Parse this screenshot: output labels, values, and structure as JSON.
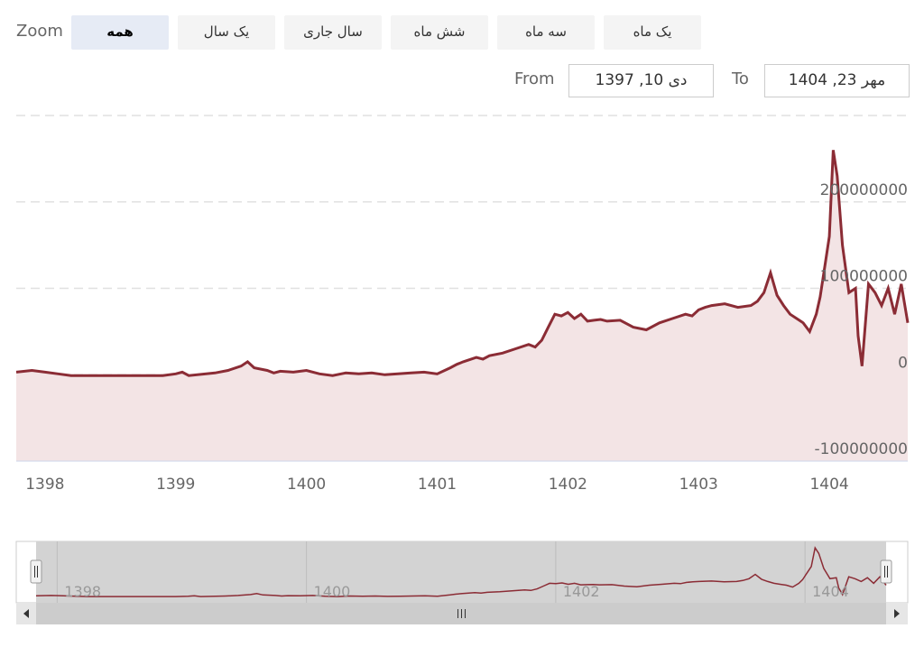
{
  "range_selector": {
    "zoom_label": "Zoom",
    "buttons": [
      {
        "label": "همه",
        "active": true
      },
      {
        "label": "یک سال",
        "active": false
      },
      {
        "label": "سال جاری",
        "active": false
      },
      {
        "label": "شش ماه",
        "active": false
      },
      {
        "label": "سه ماه",
        "active": false
      },
      {
        "label": "یک ماه",
        "active": false
      }
    ],
    "from_label": "From",
    "from_value": "دی 10, 1397",
    "to_label": "To",
    "to_value": "مهر 23, 1404"
  },
  "colors": {
    "line": "#8b2c35",
    "area": "#f3e4e5",
    "grid": "#e0e0e0",
    "navigator_mask": "#d3d3d3",
    "accent_button": "#e6ebf5"
  },
  "icons": {
    "scroll_left": "left-arrow-icon",
    "scroll_right": "right-arrow-icon",
    "scroll_grip": "grip-icon",
    "handle": "handle-grip-icon"
  },
  "chart_data": {
    "type": "area",
    "title": "",
    "xlabel": "",
    "ylabel": "",
    "xlim": [
      1397.78,
      1404.6
    ],
    "ylim": [
      -100000000,
      300000000
    ],
    "y_ticks": [
      -100000000,
      0,
      100000000,
      200000000
    ],
    "y_tick_labels": [
      "-100000000",
      "0",
      "100000000",
      "200000000"
    ],
    "x_ticks": [
      1398,
      1399,
      1400,
      1401,
      1402,
      1403,
      1404
    ],
    "x_tick_labels": [
      "1398",
      "1399",
      "1400",
      "1401",
      "1402",
      "1403",
      "1404"
    ],
    "navigator_labels": [
      "1398",
      "1400",
      "1402",
      "1404"
    ],
    "grid": "horizontal dashed",
    "legend": "none",
    "series": [
      {
        "x": [
          1397.78,
          1397.9,
          1398.0,
          1398.1,
          1398.2,
          1398.35,
          1398.5,
          1398.7,
          1398.9,
          1399.0,
          1399.05,
          1399.1,
          1399.3,
          1399.4,
          1399.5,
          1399.55,
          1399.6,
          1399.7,
          1399.75,
          1399.8,
          1399.9,
          1400.0,
          1400.1,
          1400.2,
          1400.3,
          1400.4,
          1400.5,
          1400.6,
          1400.7,
          1400.8,
          1400.9,
          1401.0,
          1401.1,
          1401.15,
          1401.2,
          1401.3,
          1401.35,
          1401.4,
          1401.5,
          1401.6,
          1401.7,
          1401.75,
          1401.8,
          1401.85,
          1401.9,
          1401.95,
          1402.0,
          1402.05,
          1402.1,
          1402.15,
          1402.2,
          1402.25,
          1402.3,
          1402.4,
          1402.5,
          1402.6,
          1402.7,
          1402.8,
          1402.9,
          1402.95,
          1403.0,
          1403.05,
          1403.1,
          1403.2,
          1403.3,
          1403.4,
          1403.45,
          1403.5,
          1403.55,
          1403.6,
          1403.65,
          1403.7,
          1403.75,
          1403.8,
          1403.85,
          1403.9,
          1403.93,
          1403.96,
          1404.0,
          1404.03,
          1404.06,
          1404.1,
          1404.15,
          1404.2,
          1404.22,
          1404.25,
          1404.3,
          1404.35,
          1404.4,
          1404.45,
          1404.5,
          1404.55,
          1404.6
        ],
        "y": [
          3000000,
          5000000,
          3000000,
          1000000,
          -1000000,
          -1000000,
          -1000000,
          -1000000,
          -1000000,
          1000000,
          3000000,
          -1000000,
          2000000,
          5000000,
          10000000,
          15000000,
          8000000,
          5000000,
          2000000,
          4000000,
          3000000,
          5000000,
          1000000,
          -1000000,
          2000000,
          1000000,
          2000000,
          0,
          1000000,
          2000000,
          3000000,
          1000000,
          8000000,
          12000000,
          15000000,
          20000000,
          18000000,
          22000000,
          25000000,
          30000000,
          35000000,
          32000000,
          40000000,
          55000000,
          70000000,
          68000000,
          72000000,
          65000000,
          70000000,
          62000000,
          63000000,
          64000000,
          62000000,
          63000000,
          55000000,
          52000000,
          60000000,
          65000000,
          70000000,
          68000000,
          75000000,
          78000000,
          80000000,
          82000000,
          78000000,
          80000000,
          85000000,
          95000000,
          118000000,
          92000000,
          80000000,
          70000000,
          65000000,
          60000000,
          50000000,
          70000000,
          90000000,
          120000000,
          160000000,
          260000000,
          230000000,
          150000000,
          95000000,
          100000000,
          45000000,
          10000000,
          105000000,
          95000000,
          80000000,
          100000000,
          70000000,
          105000000,
          60000000
        ]
      }
    ]
  }
}
